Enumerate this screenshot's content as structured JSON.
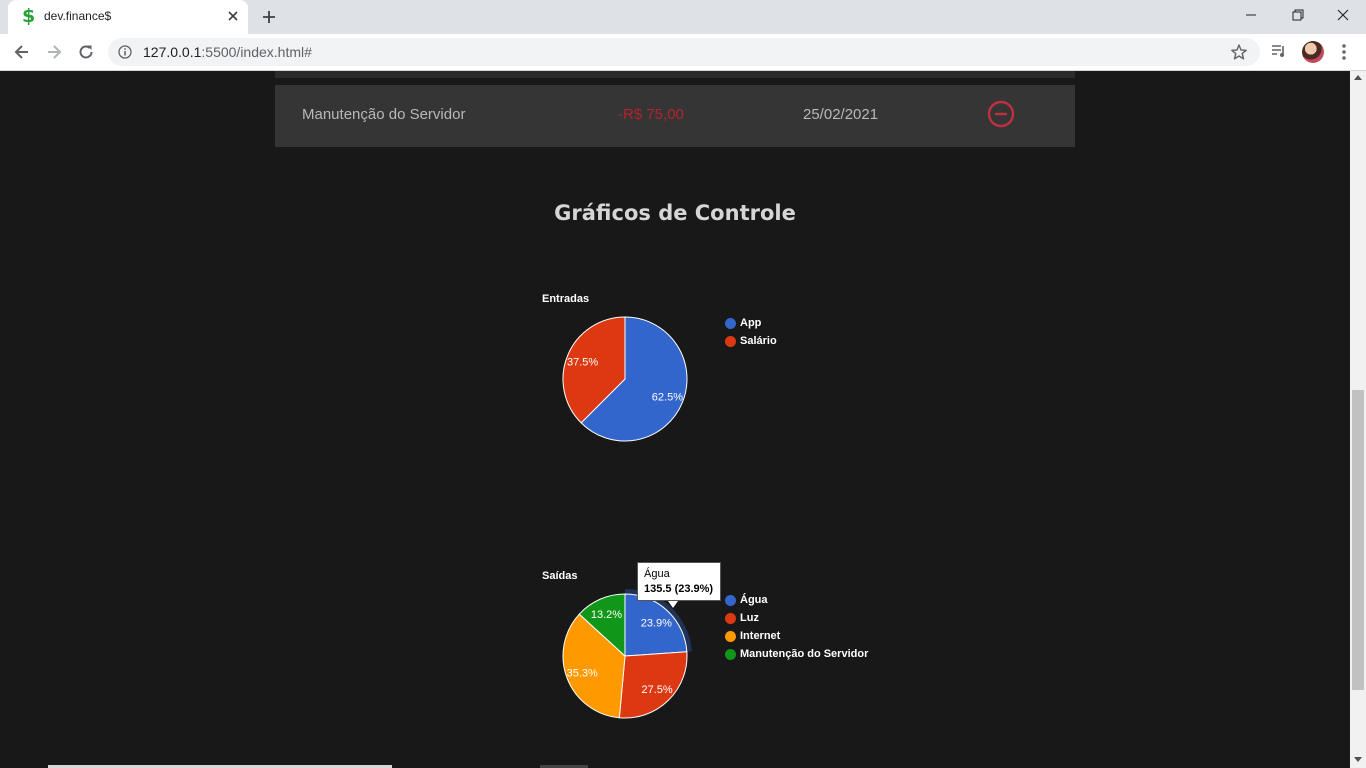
{
  "browser": {
    "tab_title": "dev.finance$",
    "favicon_glyph": "$",
    "url_host": "127.0.0.1",
    "url_rest": ":5500/index.html#"
  },
  "transaction": {
    "description": "Manutenção do Servidor",
    "amount": "-R$ 75,00",
    "date": "25/02/2021"
  },
  "section_title": "Gráficos de Controle",
  "chart_data": [
    {
      "type": "pie",
      "title": "Entradas",
      "categories": [
        "App",
        "Salário"
      ],
      "percent_labels": [
        "62.5%",
        "37.5%"
      ],
      "values": [
        62.5,
        37.5
      ],
      "colors": [
        "#3366cc",
        "#dc3912"
      ],
      "legend": "right"
    },
    {
      "type": "pie",
      "title": "Saídas",
      "categories": [
        "Água",
        "Luz",
        "Internet",
        "Manutenção do Servidor"
      ],
      "percent_labels": [
        "23.9%",
        "27.5%",
        "35.3%",
        "13.2%"
      ],
      "values": [
        23.9,
        27.5,
        35.3,
        13.2
      ],
      "colors": [
        "#3366cc",
        "#dc3912",
        "#ff9900",
        "#109618"
      ],
      "legend": "right",
      "tooltip": {
        "label": "Água",
        "value": "135.5 (23.9%)"
      }
    }
  ]
}
